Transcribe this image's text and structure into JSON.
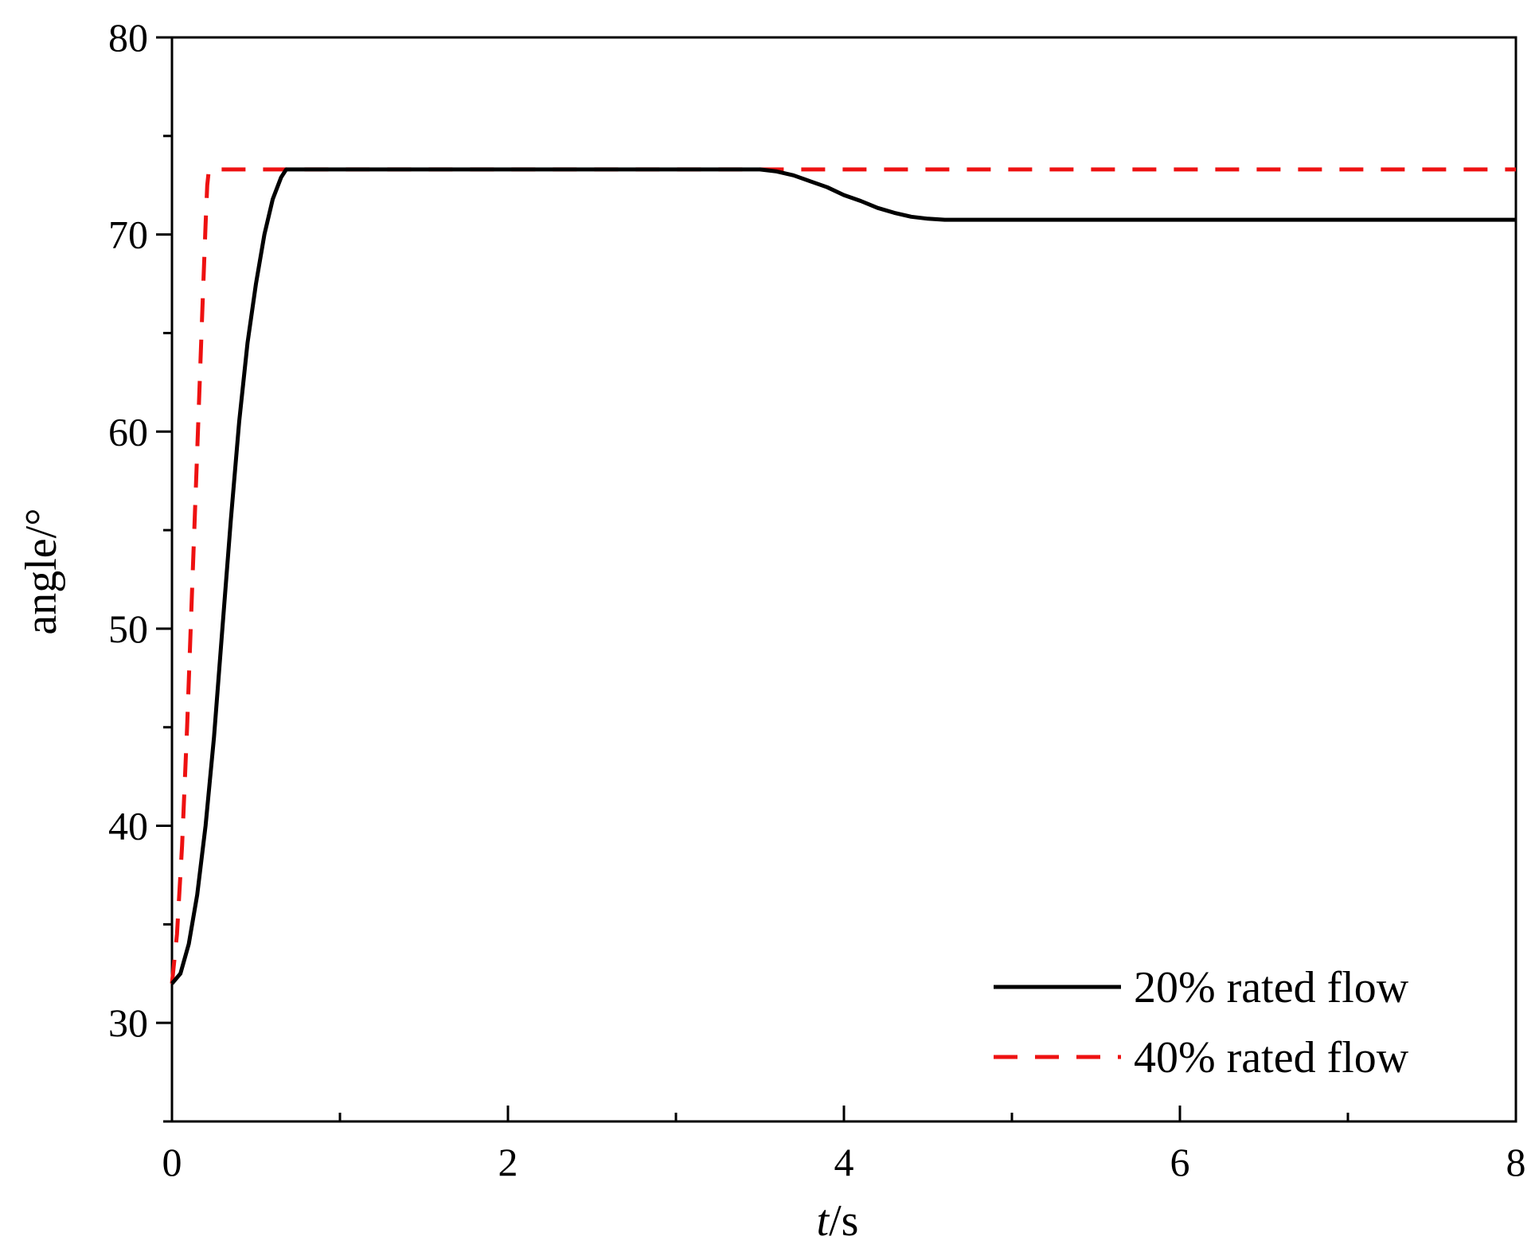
{
  "chart_data": {
    "type": "line",
    "xlabel_italic": "t",
    "xlabel_unit": "/s",
    "ylabel": "angle/°",
    "xlim": [
      0,
      8
    ],
    "ylim": [
      25,
      80
    ],
    "x_ticks": [
      0,
      2,
      4,
      6,
      8
    ],
    "x_tick_labels": [
      "0",
      "2",
      "4",
      "6",
      "8"
    ],
    "x_minor_ticks": [
      1,
      3,
      5,
      7
    ],
    "y_ticks": [
      30,
      40,
      50,
      60,
      70,
      80
    ],
    "y_tick_labels": [
      "30",
      "40",
      "50",
      "60",
      "70",
      "80"
    ],
    "y_minor_ticks": [
      25,
      35,
      45,
      55,
      65,
      75
    ],
    "grid": false,
    "legend_position": "bottom-right",
    "series": [
      {
        "name": "20% rated flow",
        "color": "#000000",
        "dash": "solid",
        "x": [
          0,
          0.05,
          0.1,
          0.15,
          0.2,
          0.25,
          0.3,
          0.35,
          0.4,
          0.45,
          0.5,
          0.55,
          0.6,
          0.65,
          0.68,
          1.0,
          2.0,
          3.0,
          3.5,
          3.6,
          3.7,
          3.8,
          3.9,
          4.0,
          4.1,
          4.2,
          4.3,
          4.4,
          4.5,
          4.6,
          4.7,
          5.0,
          6.0,
          7.0,
          8.0
        ],
        "y": [
          32.0,
          32.5,
          34.0,
          36.5,
          40.0,
          44.5,
          50.0,
          55.5,
          60.5,
          64.5,
          67.5,
          70.0,
          71.8,
          72.9,
          73.3,
          73.3,
          73.3,
          73.3,
          73.3,
          73.2,
          73.0,
          72.7,
          72.4,
          72.0,
          71.7,
          71.35,
          71.1,
          70.9,
          70.8,
          70.75,
          70.75,
          70.75,
          70.75,
          70.75,
          70.75
        ]
      },
      {
        "name": "40% rated flow",
        "color": "#ee1111",
        "dash": "dashed",
        "x": [
          0,
          0.03,
          0.06,
          0.09,
          0.12,
          0.15,
          0.18,
          0.2,
          0.21,
          0.22,
          1.0,
          2.0,
          3.0,
          4.0,
          5.0,
          6.0,
          7.0,
          8.0
        ],
        "y": [
          32.0,
          34.5,
          39.0,
          45.0,
          52.0,
          59.0,
          66.0,
          70.5,
          72.5,
          73.3,
          73.3,
          73.3,
          73.3,
          73.3,
          73.3,
          73.3,
          73.3,
          73.3
        ]
      }
    ]
  }
}
